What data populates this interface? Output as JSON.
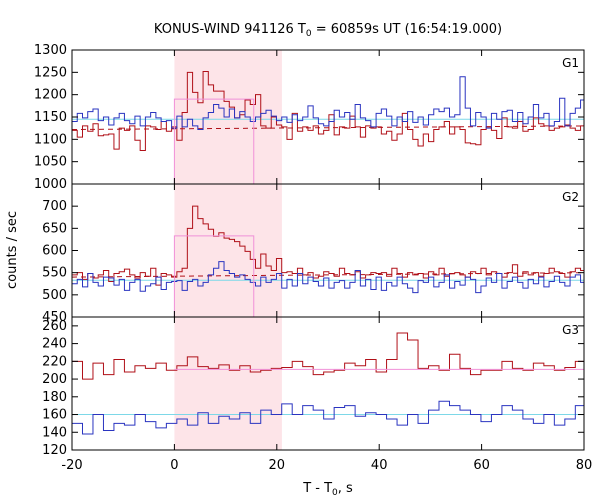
{
  "chart_data": {
    "type": "line",
    "title": {
      "prefix": "KONUS-WIND 941126 T",
      "sub": "0",
      "suffix": " = 60859s UT (16:54:19.000)"
    },
    "xlabel": {
      "prefix": "T - T",
      "sub": "0",
      "suffix": ", s"
    },
    "ylabel": "counts / sec",
    "xlim": [
      -20,
      80
    ],
    "xticks": [
      -20,
      0,
      20,
      40,
      60,
      80
    ],
    "shaded_interval": {
      "x": [
        0,
        21
      ],
      "color": "#fde4e8"
    },
    "colors": {
      "red_series": "#b01018",
      "blue_series": "#2a34c0",
      "pink_fit": "#f090d8",
      "cyan_background": "#7dd8e8",
      "red_background": "#b01018"
    },
    "panels": [
      {
        "name": "G1",
        "ylim": [
          1000,
          1300
        ],
        "yticks": [
          1000,
          1050,
          1100,
          1150,
          1200,
          1250,
          1300
        ],
        "series": [
          {
            "color_key": "red_series",
            "step": 1.024,
            "x0": -20,
            "values": [
              1120,
              1105,
              1130,
              1118,
              1135,
              1108,
              1110,
              1112,
              1078,
              1125,
              1120,
              1130,
              1098,
              1075,
              1130,
              1128,
              1122,
              1140,
              1118,
              1128,
              1098,
              1160,
              1250,
              1205,
              1182,
              1252,
              1222,
              1208,
              1208,
              1185,
              1172,
              1148,
              1155,
              1188,
              1178,
              1200,
              1130,
              1125,
              1150,
              1132,
              1128,
              1100,
              1158,
              1118,
              1128,
              1120,
              1130,
              1112,
              1120,
              1155,
              1110,
              1128,
              1125,
              1152,
              1128,
              1105,
              1130,
              1125,
              1128,
              1112,
              1118,
              1098,
              1112,
              1158,
              1122,
              1100,
              1085,
              1112,
              1095,
              1122,
              1128,
              1140,
              1112,
              1128,
              1122,
              1092,
              1090,
              1088,
              1122,
              1128,
              1120,
              1102,
              1148,
              1128,
              1125,
              1140,
              1118,
              1122,
              1148,
              1135,
              1130,
              1120,
              1125,
              1128,
              1132,
              1125,
              1120,
              1130
            ]
          },
          {
            "color_key": "blue_series",
            "step": 1.024,
            "x0": -20,
            "values": [
              1140,
              1158,
              1148,
              1162,
              1168,
              1142,
              1150,
              1132,
              1148,
              1158,
              1142,
              1135,
              1152,
              1130,
              1150,
              1160,
              1148,
              1140,
              1142,
              1125,
              1152,
              1128,
              1145,
              1130,
              1122,
              1148,
              1160,
              1178,
              1170,
              1150,
              1168,
              1148,
              1162,
              1150,
              1140,
              1150,
              1158,
              1165,
              1152,
              1142,
              1150,
              1138,
              1155,
              1142,
              1150,
              1175,
              1148,
              1135,
              1130,
              1140,
              1165,
              1150,
              1160,
              1145,
              1178,
              1148,
              1142,
              1128,
              1158,
              1168,
              1152,
              1130,
              1150,
              1140,
              1162,
              1138,
              1150,
              1132,
              1155,
              1168,
              1162,
              1170,
              1150,
              1155,
              1240,
              1170,
              1130,
              1160,
              1150,
              1125,
              1158,
              1145,
              1162,
              1165,
              1140,
              1160,
              1135,
              1150,
              1178,
              1148,
              1158,
              1130,
              1140,
              1192,
              1130,
              1158,
              1170,
              1188
            ]
          }
        ],
        "fit": {
          "color_key": "pink_fit",
          "x": [
            0,
            15.5
          ],
          "y": 1190
        },
        "backgrounds": [
          {
            "color_key": "red_background",
            "dashed": true,
            "y_start": 1122,
            "y_end": 1130
          },
          {
            "color_key": "cyan_background",
            "dashed": false,
            "y_start": 1145,
            "y_end": 1145
          }
        ]
      },
      {
        "name": "G2",
        "ylim": [
          450,
          750
        ],
        "yticks": [
          450,
          500,
          550,
          600,
          650,
          700
        ],
        "series": [
          {
            "color_key": "red_series",
            "step": 1.024,
            "x0": -20,
            "values": [
              545,
              550,
              535,
              548,
              538,
              545,
              555,
              530,
              548,
              552,
              558,
              545,
              538,
              550,
              542,
              560,
              522,
              548,
              545,
              540,
              552,
              560,
              650,
              700,
              672,
              660,
              648,
              632,
              640,
              628,
              625,
              620,
              610,
              598,
              580,
              560,
              592,
              565,
              555,
              582,
              550,
              552,
              548,
              560,
              545,
              550,
              538,
              542,
              552,
              548,
              542,
              560,
              548,
              545,
              552,
              538,
              545,
              550,
              548,
              550,
              542,
              560,
              548,
              540,
              550,
              545,
              548,
              538,
              552,
              545,
              560,
              542,
              548,
              550,
              545,
              540,
              552,
              548,
              560,
              545,
              552,
              548,
              540,
              550,
              568,
              542,
              552,
              545,
              550,
              542,
              548,
              560,
              552,
              548,
              540,
              552,
              560,
              555
            ]
          },
          {
            "color_key": "blue_series",
            "step": 1.024,
            "x0": -20,
            "values": [
              525,
              535,
              518,
              548,
              528,
              520,
              540,
              538,
              522,
              535,
              510,
              528,
              535,
              508,
              520,
              525,
              540,
              512,
              528,
              530,
              532,
              510,
              530,
              535,
              520,
              528,
              545,
              560,
              575,
              555,
              548,
              540,
              545,
              535,
              528,
              520,
              540,
              528,
              535,
              548,
              515,
              535,
              520,
              548,
              525,
              540,
              530,
              520,
              538,
              515,
              528,
              532,
              515,
              528,
              555,
              520,
              535,
              512,
              540,
              510,
              528,
              520,
              540,
              525,
              515,
              505,
              532,
              528,
              540,
              518,
              528,
              545,
              515,
              530,
              522,
              540,
              535,
              505,
              520,
              538,
              528,
              548,
              515,
              530,
              540,
              528,
              515,
              535,
              525,
              540,
              518,
              530,
              542,
              528,
              520,
              540,
              545,
              528
            ]
          }
        ],
        "fit": {
          "color_key": "pink_fit",
          "x": [
            0,
            15.5
          ],
          "y": 633
        },
        "backgrounds": [
          {
            "color_key": "red_background",
            "dashed": true,
            "y_start": 540,
            "y_end": 550
          },
          {
            "color_key": "cyan_background",
            "dashed": false,
            "y_start": 533,
            "y_end": 533
          }
        ]
      },
      {
        "name": "G3",
        "ylim": [
          120,
          270
        ],
        "yticks": [
          120,
          140,
          160,
          180,
          200,
          220,
          240,
          260
        ],
        "series": [
          {
            "color_key": "red_series",
            "step": 2.048,
            "x0": -20,
            "values": [
              220,
              200,
              218,
              205,
              222,
              208,
              215,
              212,
              218,
              210,
              215,
              225,
              214,
              212,
              216,
              210,
              215,
              208,
              210,
              212,
              213,
              220,
              214,
              205,
              208,
              210,
              218,
              215,
              222,
              208,
              222,
              252,
              244,
              212,
              215,
              210,
              228,
              212,
              205,
              210,
              210,
              220,
              212,
              210,
              218,
              215,
              210,
              213,
              220,
              212
            ]
          },
          {
            "color_key": "blue_series",
            "step": 2.048,
            "x0": -20,
            "values": [
              150,
              138,
              160,
              142,
              150,
              148,
              160,
              152,
              145,
              150,
              155,
              148,
              162,
              150,
              158,
              155,
              162,
              150,
              165,
              160,
              172,
              160,
              170,
              165,
              155,
              168,
              170,
              158,
              162,
              160,
              155,
              148,
              160,
              150,
              165,
              175,
              170,
              165,
              160,
              152,
              160,
              170,
              165,
              155,
              150,
              160,
              148,
              155,
              170,
              158
            ]
          }
        ],
        "fit": {
          "color_key": "pink_fit",
          "x": [
            0,
            80
          ],
          "y": 211
        },
        "backgrounds": [
          {
            "color_key": "cyan_background",
            "dashed": false,
            "y_start": 160,
            "y_end": 160
          }
        ]
      }
    ]
  }
}
